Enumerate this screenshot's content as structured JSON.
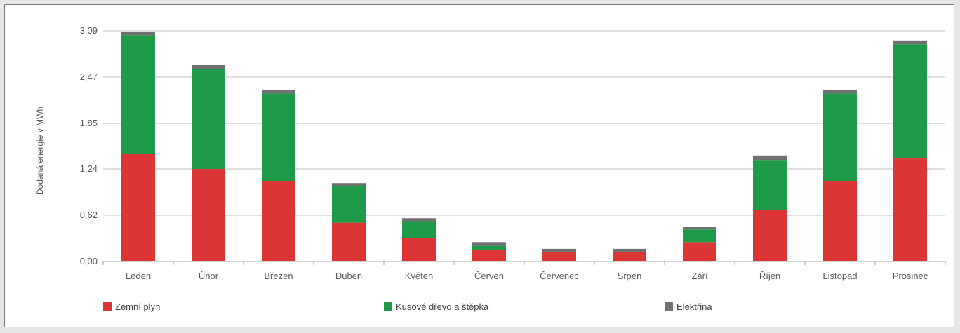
{
  "chart_data": {
    "type": "bar",
    "stacked": true,
    "ylabel": "Dodaná energie v MWh",
    "xlabel": "",
    "ylim": [
      0,
      3.09
    ],
    "yticks": [
      "0,00",
      "0,62",
      "1,24",
      "1,85",
      "2,47",
      "3,09"
    ],
    "ytick_values": [
      0,
      0.62,
      1.24,
      1.85,
      2.47,
      3.09
    ],
    "grid": true,
    "legend_position": "bottom",
    "categories": [
      "Leden",
      "Únor",
      "Březen",
      "Duben",
      "Květen",
      "Červen",
      "Červenec",
      "Srpen",
      "Září",
      "Říjen",
      "Listopad",
      "Prosinec"
    ],
    "series": [
      {
        "name": "Zemní plyn",
        "color": "#dc3535",
        "values": [
          1.44,
          1.24,
          1.08,
          0.52,
          0.31,
          0.16,
          0.13,
          0.13,
          0.26,
          0.69,
          1.08,
          1.38
        ]
      },
      {
        "name": "Kusové dřevo a štěpka",
        "color": "#1f9a48",
        "values": [
          1.59,
          1.34,
          1.17,
          0.49,
          0.23,
          0.05,
          0.0,
          0.0,
          0.17,
          0.67,
          1.17,
          1.53
        ]
      },
      {
        "name": "Elektřina",
        "color": "#707070",
        "values": [
          0.05,
          0.05,
          0.05,
          0.04,
          0.04,
          0.05,
          0.04,
          0.04,
          0.03,
          0.06,
          0.05,
          0.05
        ]
      }
    ]
  }
}
